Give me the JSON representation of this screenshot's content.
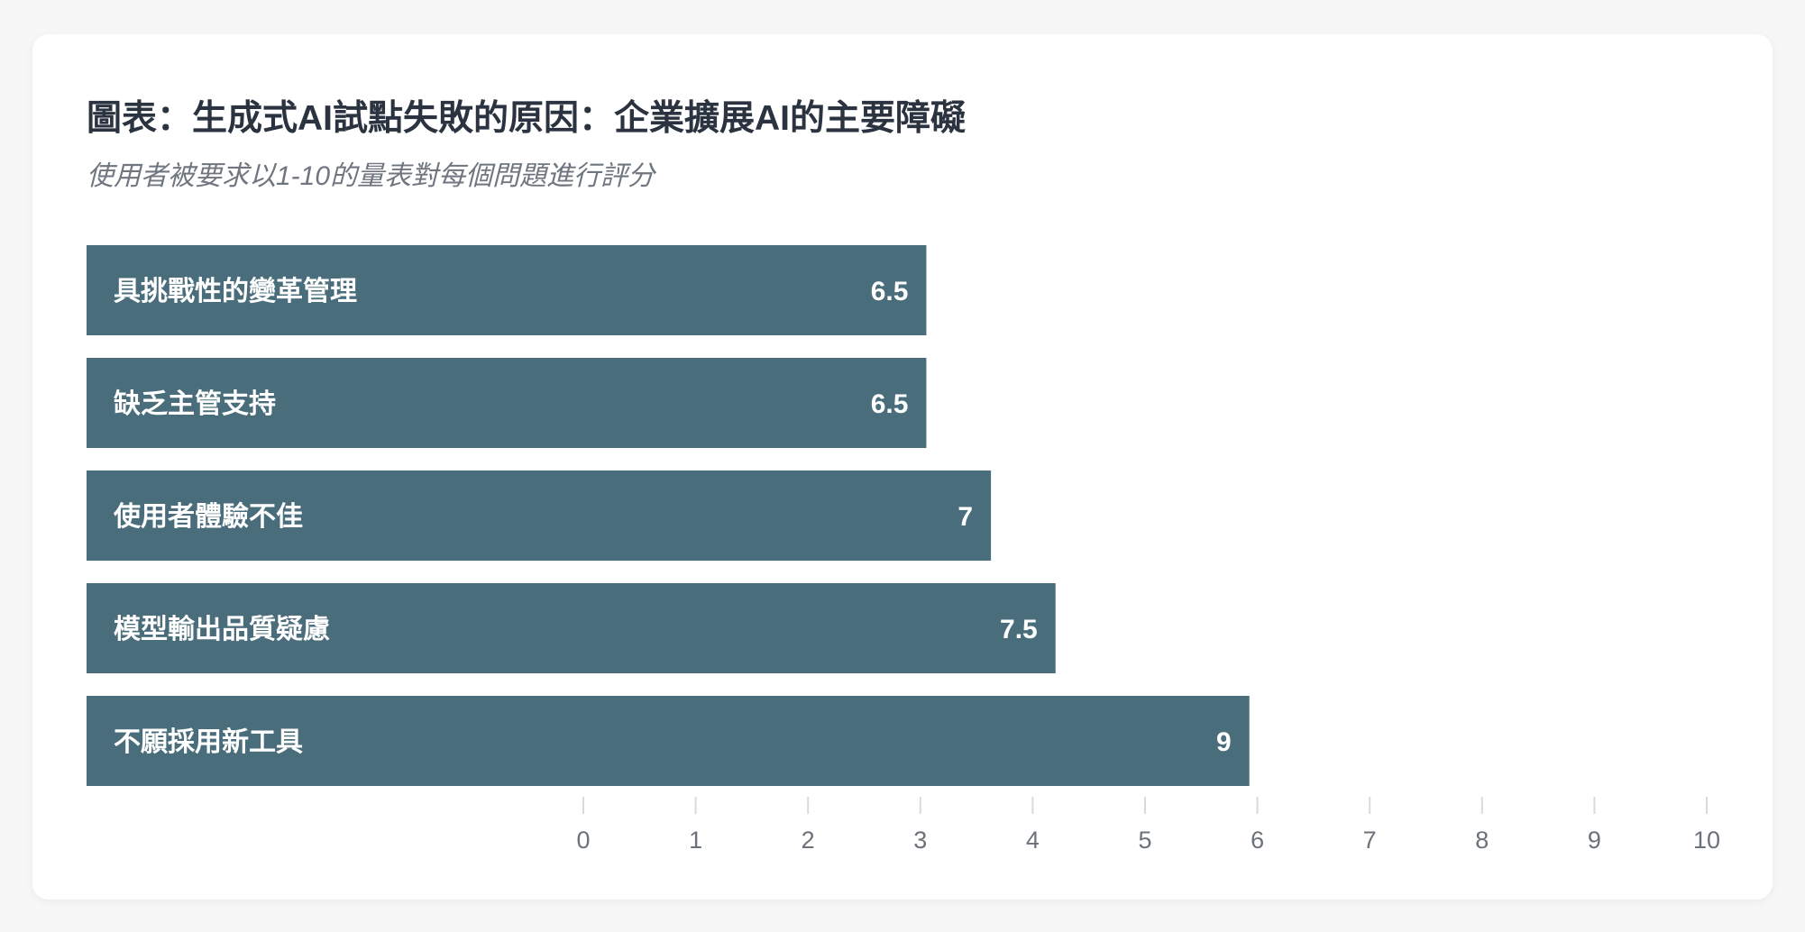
{
  "chart_data": {
    "type": "bar",
    "orientation": "horizontal",
    "title": "圖表：生成式AI試點失敗的原因：企業擴展AI的主要障礙",
    "subtitle": "使用者被要求以1-10的量表對每個問題進行評分",
    "categories": [
      "具挑戰性的變革管理",
      "缺乏主管支持",
      "使用者體驗不佳",
      "模型輸出品質疑慮",
      "不願採用新工具"
    ],
    "values": [
      6.5,
      6.5,
      7,
      7.5,
      9
    ],
    "value_labels": [
      "6.5",
      "6.5",
      "7",
      "7.5",
      "9"
    ],
    "xlim": [
      0,
      10
    ],
    "xticks": [
      "0",
      "1",
      "2",
      "3",
      "4",
      "5",
      "6",
      "7",
      "8",
      "9",
      "10"
    ],
    "grid": false,
    "legend": "none",
    "bar_color": "#4a6d7c"
  }
}
